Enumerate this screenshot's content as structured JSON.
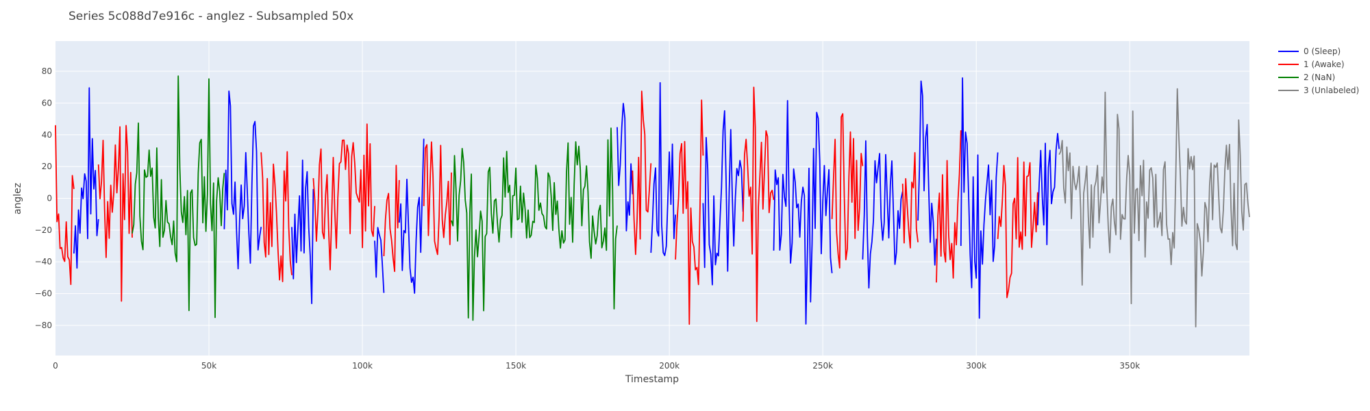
{
  "chart_data": {
    "type": "line",
    "title": "Series 5c088d7e916c - anglez - Subsampled 50x",
    "xlabel": "Timestamp",
    "ylabel": "anglez",
    "xlim": [
      0,
      389000
    ],
    "ylim": [
      -99,
      99
    ],
    "x_ticks": [
      0,
      50000,
      100000,
      150000,
      200000,
      250000,
      300000,
      350000
    ],
    "x_tick_labels": [
      "0",
      "50k",
      "100k",
      "150k",
      "200k",
      "250k",
      "300k",
      "350k"
    ],
    "y_ticks": [
      -80,
      -60,
      -40,
      -20,
      0,
      20,
      40,
      60,
      80
    ],
    "y_tick_labels": [
      "−80",
      "−60",
      "−40",
      "−20",
      "0",
      "20",
      "40",
      "60",
      "80"
    ],
    "grid": true,
    "legend_position": "top-right",
    "colors": {
      "plot_background": "#E5ECF6",
      "grid": "#FFFFFF",
      "sleep": "#0000FF",
      "awake": "#FF0000",
      "nan": "#008000",
      "unlabeled": "#808080"
    },
    "series": [
      {
        "name": "0 (Sleep)",
        "color": "#0000FF",
        "noise": 45,
        "amp_max": 88,
        "segments": [
          [
            6000,
            14000
          ],
          [
            55000,
            67000
          ],
          [
            77000,
            84000
          ],
          [
            104000,
            107000
          ],
          [
            112000,
            120000
          ],
          [
            183000,
            188000
          ],
          [
            194000,
            202000
          ],
          [
            211000,
            224000
          ],
          [
            234000,
            253000
          ],
          [
            263000,
            276000
          ],
          [
            281000,
            287000
          ],
          [
            295000,
            307000
          ],
          [
            320000,
            327000
          ]
        ]
      },
      {
        "name": "1 (Awake)",
        "color": "#FF0000",
        "noise": 40,
        "amp_max": 89,
        "segments": [
          [
            0,
            6000
          ],
          [
            14000,
            25000
          ],
          [
            67000,
            77000
          ],
          [
            84000,
            104000
          ],
          [
            107000,
            112000
          ],
          [
            120000,
            129000
          ],
          [
            188000,
            194000
          ],
          [
            202000,
            211000
          ],
          [
            224000,
            234000
          ],
          [
            253000,
            263000
          ],
          [
            276000,
            281000
          ],
          [
            287000,
            295000
          ],
          [
            307000,
            320000
          ]
        ]
      },
      {
        "name": "2 (NaN)",
        "color": "#008000",
        "noise": 30,
        "amp_max": 89,
        "segments": [
          [
            25000,
            55000
          ],
          [
            129000,
            183000
          ]
        ]
      },
      {
        "name": "3 (Unlabeled)",
        "color": "#808080",
        "noise": 30,
        "amp_max": 90,
        "segments": [
          [
            327000,
            389000
          ]
        ]
      }
    ]
  }
}
